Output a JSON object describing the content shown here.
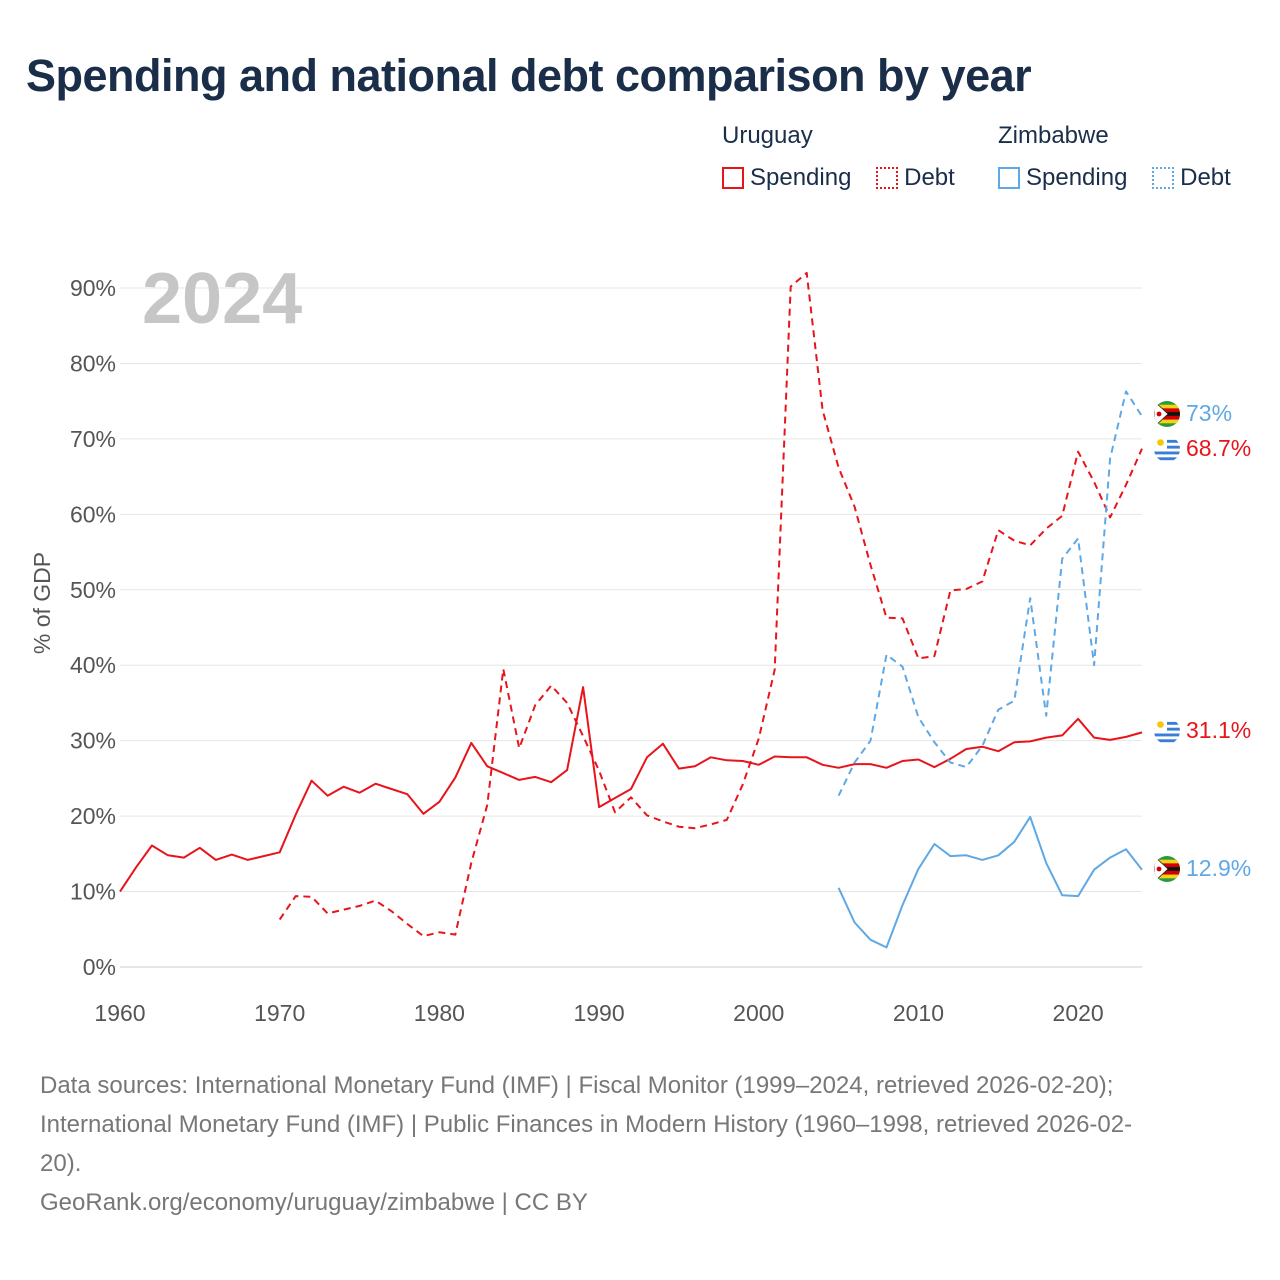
{
  "title": "Spending and national debt comparison by year",
  "legend": {
    "groups": [
      {
        "name": "Uruguay",
        "spending_label": "Spending",
        "debt_label": "Debt",
        "color": "#e8141b"
      },
      {
        "name": "Zimbabwe",
        "spending_label": "Spending",
        "debt_label": "Debt",
        "color": "#5fa8e6"
      }
    ]
  },
  "year_watermark": "2024",
  "end_labels": {
    "zimbabwe_debt": "73%",
    "uruguay_debt": "68.7%",
    "uruguay_spending": "31.1%",
    "zimbabwe_spending": "12.9%"
  },
  "chart_data": {
    "type": "line",
    "title": "Spending and national debt comparison by year",
    "xlabel": "",
    "ylabel": "% of GDP",
    "xlim": [
      1960,
      2024
    ],
    "ylim": [
      0,
      90
    ],
    "x_ticks": [
      1960,
      1970,
      1980,
      1990,
      2000,
      2010,
      2020
    ],
    "y_ticks": [
      0,
      10,
      20,
      30,
      40,
      50,
      60,
      70,
      80,
      90
    ],
    "y_tick_labels": [
      "0%",
      "10%",
      "20%",
      "30%",
      "40%",
      "50%",
      "60%",
      "70%",
      "80%",
      "90%"
    ],
    "grid": true,
    "series": [
      {
        "name": "Uruguay Spending",
        "country": "Uruguay",
        "measure": "Spending",
        "color": "#e8141b",
        "dashed": false,
        "x": [
          1960,
          1961,
          1962,
          1963,
          1964,
          1965,
          1966,
          1967,
          1968,
          1969,
          1970,
          1971,
          1972,
          1973,
          1974,
          1975,
          1976,
          1977,
          1978,
          1979,
          1980,
          1981,
          1982,
          1983,
          1984,
          1985,
          1986,
          1987,
          1988,
          1989,
          1990,
          1991,
          1992,
          1993,
          1994,
          1995,
          1996,
          1997,
          1998,
          1999,
          2000,
          2001,
          2002,
          2003,
          2004,
          2005,
          2006,
          2007,
          2008,
          2009,
          2010,
          2011,
          2012,
          2013,
          2014,
          2015,
          2016,
          2017,
          2018,
          2019,
          2020,
          2021,
          2022,
          2023,
          2024
        ],
        "y": [
          10.0,
          13.2,
          16.1,
          14.8,
          14.5,
          15.8,
          14.2,
          14.9,
          14.2,
          14.7,
          15.2,
          20.2,
          24.7,
          22.7,
          23.9,
          23.1,
          24.3,
          23.6,
          22.9,
          20.3,
          21.9,
          25.1,
          29.7,
          26.6,
          25.7,
          24.8,
          25.2,
          24.5,
          26.1,
          37.1,
          21.2,
          22.4,
          23.6,
          27.8,
          29.6,
          26.3,
          26.6,
          27.8,
          27.4,
          27.3,
          26.8,
          27.9,
          27.8,
          27.8,
          26.8,
          26.4,
          26.9,
          26.9,
          26.4,
          27.3,
          27.5,
          26.5,
          27.6,
          28.9,
          29.2,
          28.6,
          29.8,
          29.9,
          30.4,
          30.7,
          32.9,
          30.4,
          30.1,
          30.5,
          31.1
        ]
      },
      {
        "name": "Uruguay Debt",
        "country": "Uruguay",
        "measure": "Debt",
        "color": "#e8141b",
        "dashed": true,
        "x": [
          1970,
          1971,
          1972,
          1973,
          1974,
          1975,
          1976,
          1977,
          1978,
          1979,
          1980,
          1981,
          1982,
          1983,
          1984,
          1985,
          1986,
          1987,
          1988,
          1989,
          1990,
          1991,
          1992,
          1993,
          1994,
          1995,
          1996,
          1997,
          1998,
          1999,
          2000,
          2001,
          2002,
          2003,
          2004,
          2005,
          2006,
          2007,
          2008,
          2009,
          2010,
          2011,
          2012,
          2013,
          2014,
          2015,
          2016,
          2017,
          2018,
          2019,
          2020,
          2021,
          2022,
          2023,
          2024
        ],
        "y": [
          6.3,
          9.4,
          9.3,
          7.1,
          7.6,
          8.1,
          8.8,
          7.4,
          5.7,
          4.1,
          4.6,
          4.3,
          13.8,
          21.5,
          39.5,
          29.0,
          34.7,
          37.3,
          35.0,
          30.6,
          26.0,
          20.5,
          22.5,
          20.1,
          19.3,
          18.6,
          18.4,
          18.9,
          19.5,
          24.2,
          30.3,
          39.4,
          90.2,
          92.0,
          73.8,
          66.2,
          61.0,
          53.3,
          46.3,
          46.2,
          40.9,
          41.2,
          49.9,
          50.1,
          51.1,
          57.9,
          56.5,
          55.9,
          58.1,
          59.8,
          68.3,
          64.3,
          59.6,
          63.9,
          68.7
        ]
      },
      {
        "name": "Zimbabwe Spending",
        "country": "Zimbabwe",
        "measure": "Spending",
        "color": "#5fa8e6",
        "dashed": false,
        "x": [
          2005,
          2006,
          2007,
          2008,
          2009,
          2010,
          2011,
          2012,
          2013,
          2014,
          2015,
          2016,
          2017,
          2018,
          2019,
          2020,
          2021,
          2022,
          2023,
          2024
        ],
        "y": [
          10.5,
          5.9,
          3.6,
          2.6,
          8.2,
          13.0,
          16.3,
          14.7,
          14.8,
          14.2,
          14.8,
          16.6,
          19.9,
          13.8,
          9.5,
          9.4,
          12.9,
          14.5,
          15.6,
          12.9
        ]
      },
      {
        "name": "Zimbabwe Debt",
        "country": "Zimbabwe",
        "measure": "Debt",
        "color": "#5fa8e6",
        "dashed": true,
        "x": [
          2005,
          2006,
          2007,
          2008,
          2009,
          2010,
          2011,
          2012,
          2013,
          2014,
          2015,
          2016,
          2017,
          2018,
          2019,
          2020,
          2021,
          2022,
          2023,
          2024
        ],
        "y": [
          22.7,
          27.1,
          30.0,
          41.4,
          39.8,
          33.1,
          29.8,
          27.1,
          26.5,
          29.3,
          34.1,
          35.3,
          48.9,
          33.3,
          54.1,
          56.8,
          40.0,
          67.4,
          76.3,
          73.0
        ]
      }
    ]
  },
  "sources": {
    "line1": "Data sources: International Monetary Fund (IMF) | Fiscal Monitor (1999–2024, retrieved 2026-02-20);",
    "line2": "International Monetary Fund (IMF) | Public Finances in Modern History (1960–1998, retrieved 2026-02-",
    "line3": "20).",
    "site": "GeoRank.org/economy/uruguay/zimbabwe | CC BY"
  }
}
